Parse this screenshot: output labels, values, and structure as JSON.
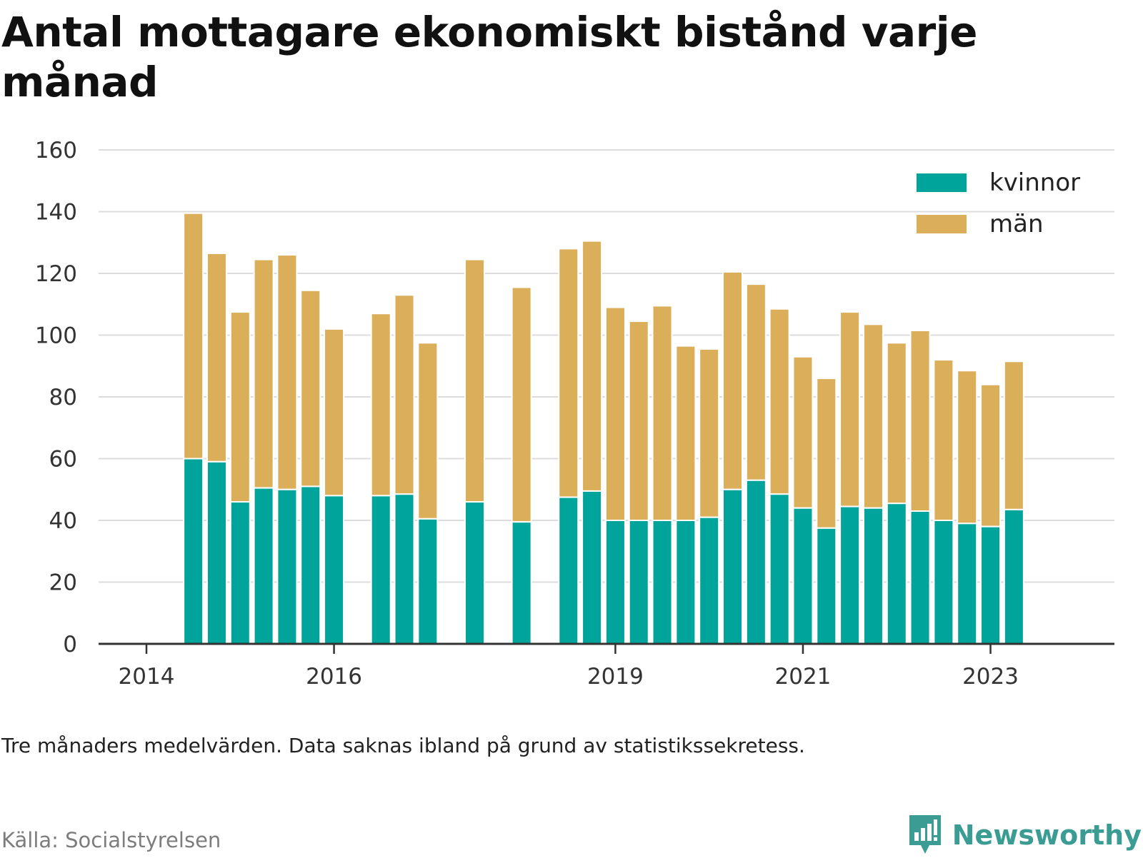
{
  "title": "Antal mottagare ekonomiskt bistånd varje månad",
  "note": "Tre månaders medelvärden. Data saknas ibland på grund av statistikssekretess.",
  "source": "Källa: Socialstyrelsen",
  "brand": "Newsworthy",
  "colors": {
    "kvinnor": "#00a49a",
    "man": "#dbae5a",
    "grid": "#dcdcdc",
    "axis": "#333333",
    "brand": "#3a9c93"
  },
  "chart_data": {
    "type": "bar",
    "stacked": true,
    "x_start": 2014.0,
    "x_end": 2023.75,
    "x_ticks": [
      2014,
      2016,
      2019,
      2021,
      2023
    ],
    "x_tick_labels": [
      "2014",
      "2016",
      "2019",
      "2021",
      "2023"
    ],
    "ylim": [
      0,
      160
    ],
    "y_ticks": [
      0,
      20,
      40,
      60,
      80,
      100,
      120,
      140,
      160
    ],
    "grid": true,
    "legend_position": "top-right",
    "x": [
      2014.5,
      2014.75,
      2015.0,
      2015.25,
      2015.5,
      2015.75,
      2016.0,
      2016.5,
      2016.75,
      2017.0,
      2017.5,
      2018.0,
      2018.5,
      2018.75,
      2019.0,
      2019.25,
      2019.5,
      2019.75,
      2020.0,
      2020.25,
      2020.5,
      2020.75,
      2021.0,
      2021.25,
      2021.5,
      2021.75,
      2022.0,
      2022.25,
      2022.5,
      2022.75,
      2023.0,
      2023.25
    ],
    "series": [
      {
        "name": "kvinnor",
        "color": "#00a49a",
        "values": [
          60,
          59,
          46,
          50.5,
          50,
          51,
          48,
          48,
          48.5,
          40.5,
          46,
          39.5,
          47.5,
          49.5,
          40,
          40,
          40,
          40,
          41,
          50,
          53,
          48.5,
          44,
          37.5,
          44.5,
          44,
          45.5,
          43,
          40,
          39,
          38,
          43.5
        ]
      },
      {
        "name": "män",
        "color": "#dbae5a",
        "values": [
          79.5,
          67.5,
          61.5,
          74,
          76,
          63.5,
          54,
          59,
          64.5,
          57,
          78.5,
          76,
          80.5,
          81,
          69,
          64.5,
          69.5,
          56.5,
          54.5,
          70.5,
          63.5,
          60,
          49,
          48.5,
          63,
          59.5,
          52,
          58.5,
          52,
          49.5,
          46,
          48
        ]
      }
    ]
  }
}
